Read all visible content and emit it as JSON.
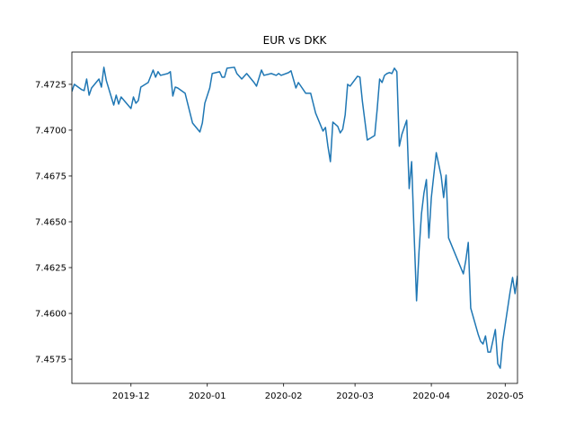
{
  "chart_data": {
    "type": "line",
    "title": "EUR vs DKK",
    "color": "#1f77b4",
    "x": [
      "2019-11-07",
      "2019-11-08",
      "2019-11-11",
      "2019-11-12",
      "2019-11-13",
      "2019-11-14",
      "2019-11-15",
      "2019-11-18",
      "2019-11-19",
      "2019-11-20",
      "2019-11-21",
      "2019-11-23",
      "2019-11-24",
      "2019-11-25",
      "2019-11-26",
      "2019-11-27",
      "2019-12-01",
      "2019-12-02",
      "2019-12-03",
      "2019-12-04",
      "2019-12-05",
      "2019-12-08",
      "2019-12-10",
      "2019-12-11",
      "2019-12-12",
      "2019-12-13",
      "2019-12-16",
      "2019-12-17",
      "2019-12-18",
      "2019-12-19",
      "2019-12-20",
      "2019-12-23",
      "2019-12-26",
      "2019-12-29",
      "2019-12-30",
      "2019-12-31",
      "2020-01-02",
      "2020-01-03",
      "2020-01-06",
      "2020-01-07",
      "2020-01-08",
      "2020-01-09",
      "2020-01-12",
      "2020-01-13",
      "2020-01-15",
      "2020-01-17",
      "2020-01-20",
      "2020-01-21",
      "2020-01-23",
      "2020-01-24",
      "2020-01-27",
      "2020-01-29",
      "2020-01-30",
      "2020-01-31",
      "2020-02-03",
      "2020-02-04",
      "2020-02-06",
      "2020-02-07",
      "2020-02-10",
      "2020-02-12",
      "2020-02-14",
      "2020-02-17",
      "2020-02-18",
      "2020-02-19",
      "2020-02-20",
      "2020-02-21",
      "2020-02-23",
      "2020-02-24",
      "2020-02-25",
      "2020-02-26",
      "2020-02-27",
      "2020-02-28",
      "2020-03-02",
      "2020-03-03",
      "2020-03-04",
      "2020-03-06",
      "2020-03-09",
      "2020-03-10",
      "2020-03-11",
      "2020-03-12",
      "2020-03-13",
      "2020-03-14",
      "2020-03-15",
      "2020-03-16",
      "2020-03-17",
      "2020-03-18",
      "2020-03-19",
      "2020-03-20",
      "2020-03-22",
      "2020-03-23",
      "2020-03-24",
      "2020-03-25",
      "2020-03-26",
      "2020-03-27",
      "2020-03-28",
      "2020-03-29",
      "2020-03-30",
      "2020-03-31",
      "2020-04-01",
      "2020-04-03",
      "2020-04-05",
      "2020-04-06",
      "2020-04-07",
      "2020-04-08",
      "2020-04-14",
      "2020-04-15",
      "2020-04-16",
      "2020-04-17",
      "2020-04-20",
      "2020-04-21",
      "2020-04-22",
      "2020-04-23",
      "2020-04-24",
      "2020-04-25",
      "2020-04-27",
      "2020-04-28",
      "2020-04-29",
      "2020-04-30",
      "2020-05-03",
      "2020-05-04",
      "2020-05-05",
      "2020-05-06"
    ],
    "values": [
      7.47211,
      7.4725,
      7.47221,
      7.47216,
      7.47279,
      7.47191,
      7.4723,
      7.47279,
      7.47235,
      7.47343,
      7.4727,
      7.47181,
      7.47137,
      7.47191,
      7.47142,
      7.47181,
      7.47118,
      7.47181,
      7.47147,
      7.47162,
      7.47235,
      7.4726,
      7.47328,
      7.47289,
      7.47319,
      7.47299,
      7.47309,
      7.47319,
      7.47186,
      7.47235,
      7.4723,
      7.47201,
      7.47039,
      7.4699,
      7.47039,
      7.47147,
      7.4723,
      7.47309,
      7.47319,
      7.47289,
      7.47289,
      7.47338,
      7.47343,
      7.47309,
      7.47279,
      7.47309,
      7.4726,
      7.4724,
      7.47328,
      7.47299,
      7.47309,
      7.47299,
      7.47309,
      7.47299,
      7.47314,
      7.47324,
      7.4723,
      7.4726,
      7.47201,
      7.47201,
      7.47093,
      7.46995,
      7.47015,
      7.46912,
      7.46828,
      7.47044,
      7.4702,
      7.46985,
      7.47005,
      7.47083,
      7.4725,
      7.4724,
      7.47294,
      7.47289,
      7.47157,
      7.46946,
      7.46971,
      7.47113,
      7.47279,
      7.4726,
      7.47299,
      7.47309,
      7.47314,
      7.47309,
      7.47338,
      7.47319,
      7.46912,
      7.46975,
      7.47054,
      7.46681,
      7.46828,
      7.46436,
      7.46069,
      7.46338,
      7.46544,
      7.46657,
      7.4673,
      7.46412,
      7.46632,
      7.46877,
      7.4675,
      7.46632,
      7.46755,
      7.46412,
      7.46216,
      7.46289,
      7.46387,
      7.46029,
      7.45887,
      7.45848,
      7.45833,
      7.45877,
      7.45789,
      7.45789,
      7.45912,
      7.45725,
      7.45701,
      7.45848,
      7.46118,
      7.46196,
      7.46108,
      7.46206
    ],
    "xlim": [
      "2019-11-07",
      "2020-05-06"
    ],
    "xticks": [
      {
        "value": "2019-12-01",
        "label": "2019-12"
      },
      {
        "value": "2020-01-01",
        "label": "2020-01"
      },
      {
        "value": "2020-02-01",
        "label": "2020-02"
      },
      {
        "value": "2020-03-01",
        "label": "2020-03"
      },
      {
        "value": "2020-04-01",
        "label": "2020-04"
      },
      {
        "value": "2020-05-01",
        "label": "2020-05"
      }
    ],
    "ylim": [
      7.45618,
      7.47426
    ],
    "yticks": [
      7.4575,
      {
        "value": 7.46,
        "label": "7.4600"
      },
      7.4625,
      {
        "value": 7.465,
        "label": "7.4650"
      },
      7.4675,
      {
        "value": 7.47,
        "label": "7.4700"
      },
      7.4725
    ]
  }
}
